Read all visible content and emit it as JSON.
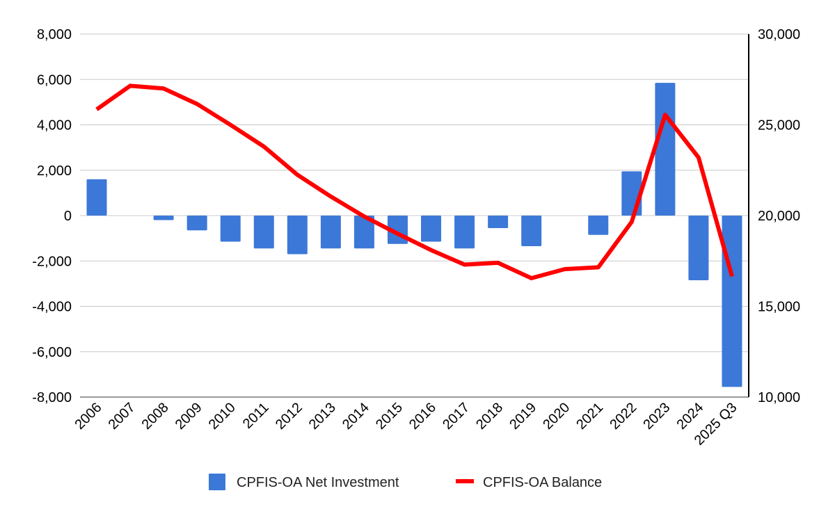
{
  "chart_data": {
    "type": "bar+line",
    "title": "",
    "xlabel": "",
    "categories": [
      "2006",
      "2007",
      "2008",
      "2009",
      "2010",
      "2011",
      "2012",
      "2013",
      "2014",
      "2015",
      "2016",
      "2017",
      "2018",
      "2019",
      "2020",
      "2021",
      "2022",
      "2023",
      "2024",
      "2025 Q3"
    ],
    "series": [
      {
        "name": "CPFIS-OA Net Investment",
        "type": "bar",
        "axis": "left",
        "color": "#3c78d8",
        "values": [
          1600,
          0,
          -200,
          -650,
          -1150,
          -1450,
          -1700,
          -1450,
          -1450,
          -1250,
          -1150,
          -1450,
          -550,
          -1350,
          0,
          -850,
          1950,
          5850,
          -2850,
          -7550
        ]
      },
      {
        "name": "CPFIS-OA Balance",
        "type": "line",
        "axis": "right",
        "color": "#ff0000",
        "values": [
          25850,
          27150,
          27000,
          26150,
          25000,
          23800,
          22250,
          21050,
          19950,
          19000,
          18100,
          17300,
          17400,
          16550,
          17050,
          17150,
          19650,
          25550,
          23200,
          16650
        ]
      }
    ],
    "y_left": {
      "min": -8000,
      "max": 8000,
      "ticks": [
        8000,
        6000,
        4000,
        2000,
        0,
        -2000,
        -4000,
        -6000,
        -8000
      ],
      "tick_labels": [
        "8,000",
        "6,000",
        "4,000",
        "2,000",
        "0",
        "-2,000",
        "-4,000",
        "-6,000",
        "-8,000"
      ]
    },
    "y_right": {
      "min": 10000,
      "max": 30000,
      "ticks": [
        30000,
        25000,
        20000,
        15000,
        10000
      ],
      "tick_labels": [
        "30,000",
        "25,000",
        "20,000",
        "15,000",
        "10,000"
      ]
    },
    "grid": true,
    "legend": {
      "position": "bottom",
      "entries": [
        "CPFIS-OA Net Investment",
        "CPFIS-OA Balance"
      ]
    }
  }
}
